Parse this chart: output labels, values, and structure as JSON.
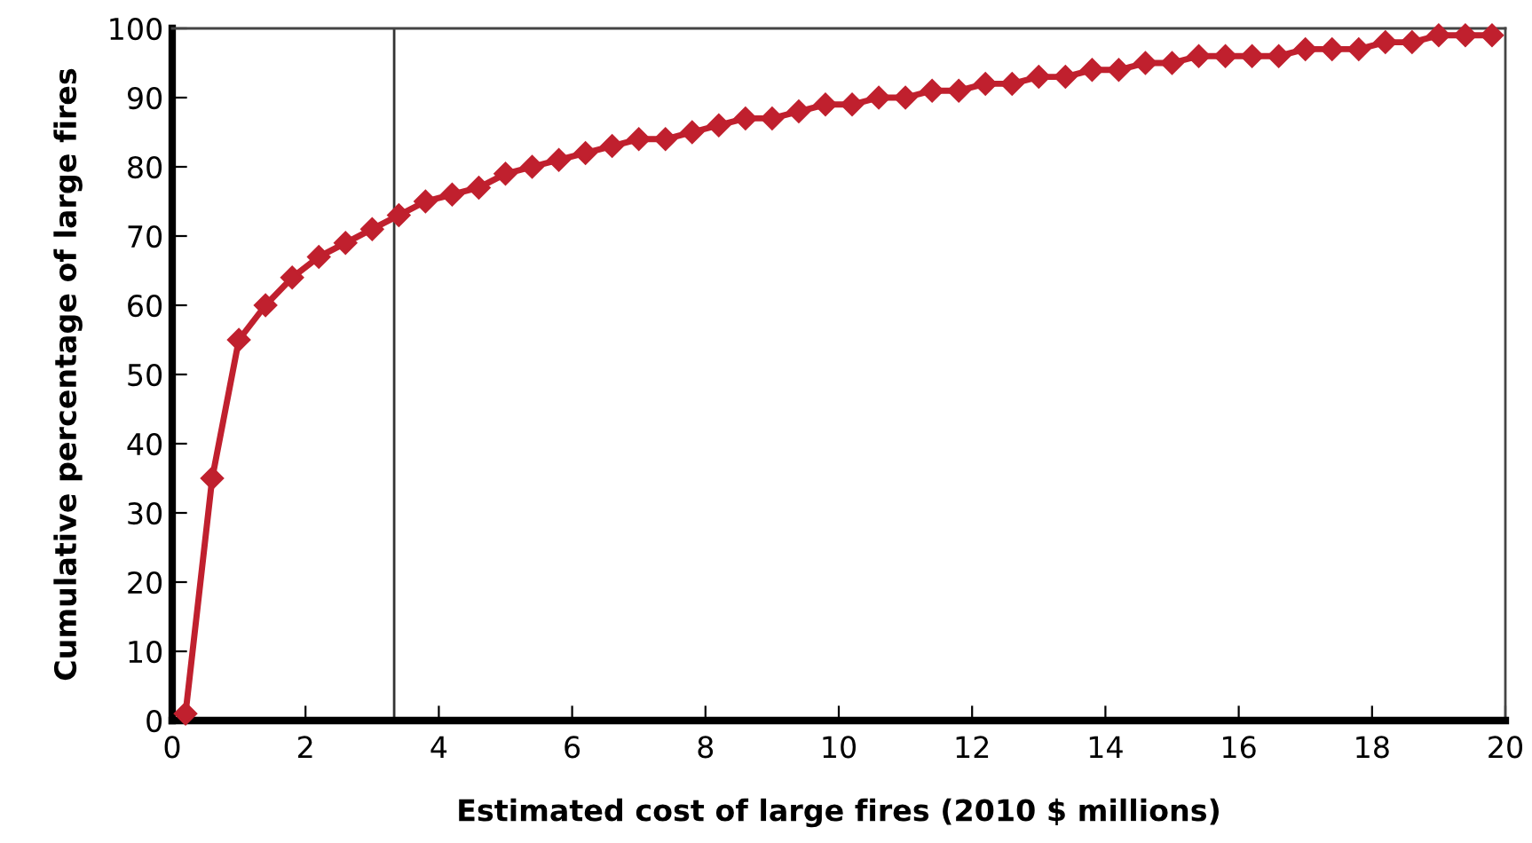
{
  "chart_data": {
    "type": "line",
    "xlabel": "Estimated cost of large fires (2010 $ millions)",
    "ylabel": "Cumulative percentage of large fires",
    "x": [
      0.2,
      0.6,
      1.0,
      1.4,
      1.8,
      2.2,
      2.6,
      3.0,
      3.4,
      3.8,
      4.2,
      4.6,
      5.0,
      5.4,
      5.8,
      6.2,
      6.6,
      7.0,
      7.4,
      7.8,
      8.2,
      8.6,
      9.0,
      9.4,
      9.8,
      10.2,
      10.6,
      11.0,
      11.4,
      11.8,
      12.2,
      12.6,
      13.0,
      13.4,
      13.8,
      14.2,
      14.6,
      15.0,
      15.4,
      15.8,
      16.2,
      16.6,
      17.0,
      17.4,
      17.8,
      18.2,
      18.6,
      19.0,
      19.4,
      19.8
    ],
    "series": [
      {
        "color": "#c0202e",
        "values": [
          1,
          35,
          55,
          60,
          64,
          67,
          69,
          71,
          73,
          75,
          76,
          77,
          79,
          80,
          81,
          82,
          83,
          84,
          84,
          85,
          86,
          87,
          87,
          88,
          89,
          89,
          90,
          90,
          91,
          91,
          92,
          92,
          93,
          93,
          94,
          94,
          95,
          95,
          96,
          96,
          96,
          96,
          97,
          97,
          97,
          98,
          98,
          99,
          99,
          99
        ]
      }
    ],
    "xlim": [
      0,
      20
    ],
    "xticks": [
      0,
      2,
      4,
      6,
      8,
      10,
      12,
      14,
      16,
      18,
      20
    ],
    "ylim": [
      0,
      100
    ],
    "yticks": [
      0,
      10,
      20,
      30,
      40,
      50,
      60,
      70,
      80,
      90,
      100
    ],
    "marker": "diamond",
    "line_style": "solid",
    "grid": false,
    "legend": false,
    "ref_lines": [
      {
        "axis": "x",
        "value": 3.33,
        "color": "#333333",
        "line_style": "solid"
      }
    ]
  }
}
